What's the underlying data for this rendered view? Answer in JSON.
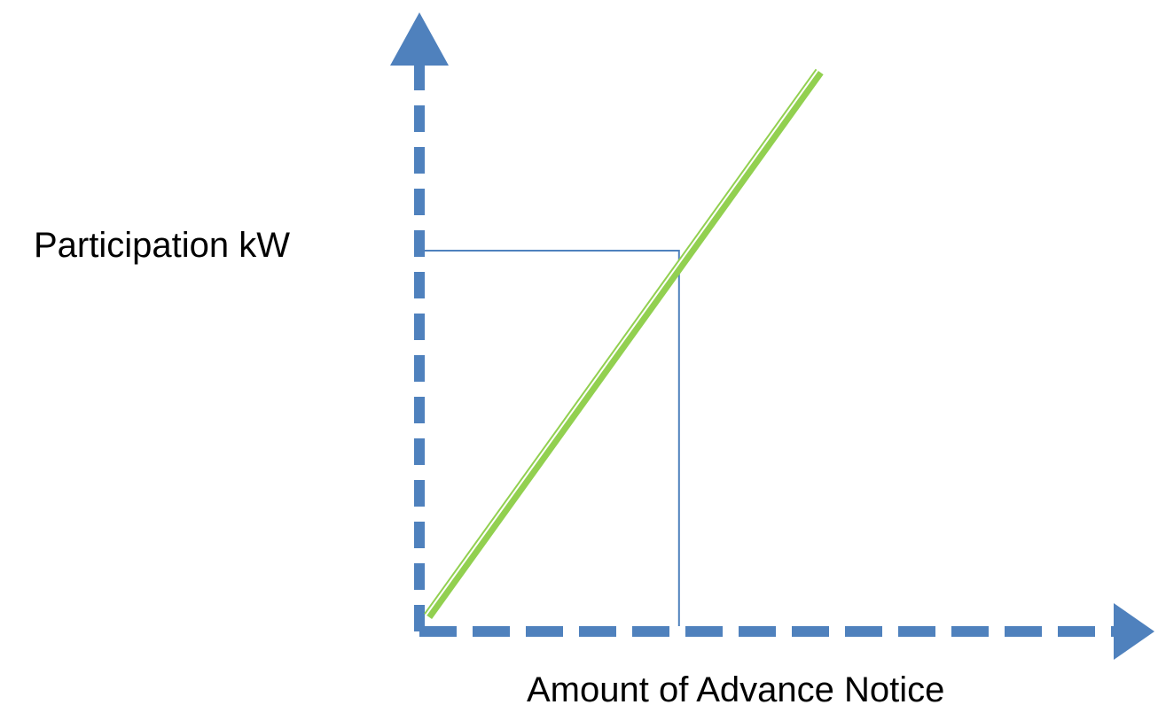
{
  "chart_data": {
    "type": "line",
    "title": "",
    "xlabel": "Amount of Advance Notice",
    "ylabel": "Participation kW",
    "x_ticks": [],
    "y_ticks": [],
    "xlim": [
      0,
      1
    ],
    "ylim": [
      0,
      1
    ],
    "grid": false,
    "legend": "none",
    "series": [
      {
        "color": "#92D050",
        "x": [
          0.02,
          0.94
        ],
        "y": [
          0.04,
          1.47
        ]
      }
    ],
    "reference_point": {
      "x": 0.61,
      "y": 1.0,
      "style": "guide lines to both axes"
    }
  },
  "colors": {
    "axis": "#4F81BD",
    "series": "#92D050",
    "guide": "#4F81BD"
  }
}
